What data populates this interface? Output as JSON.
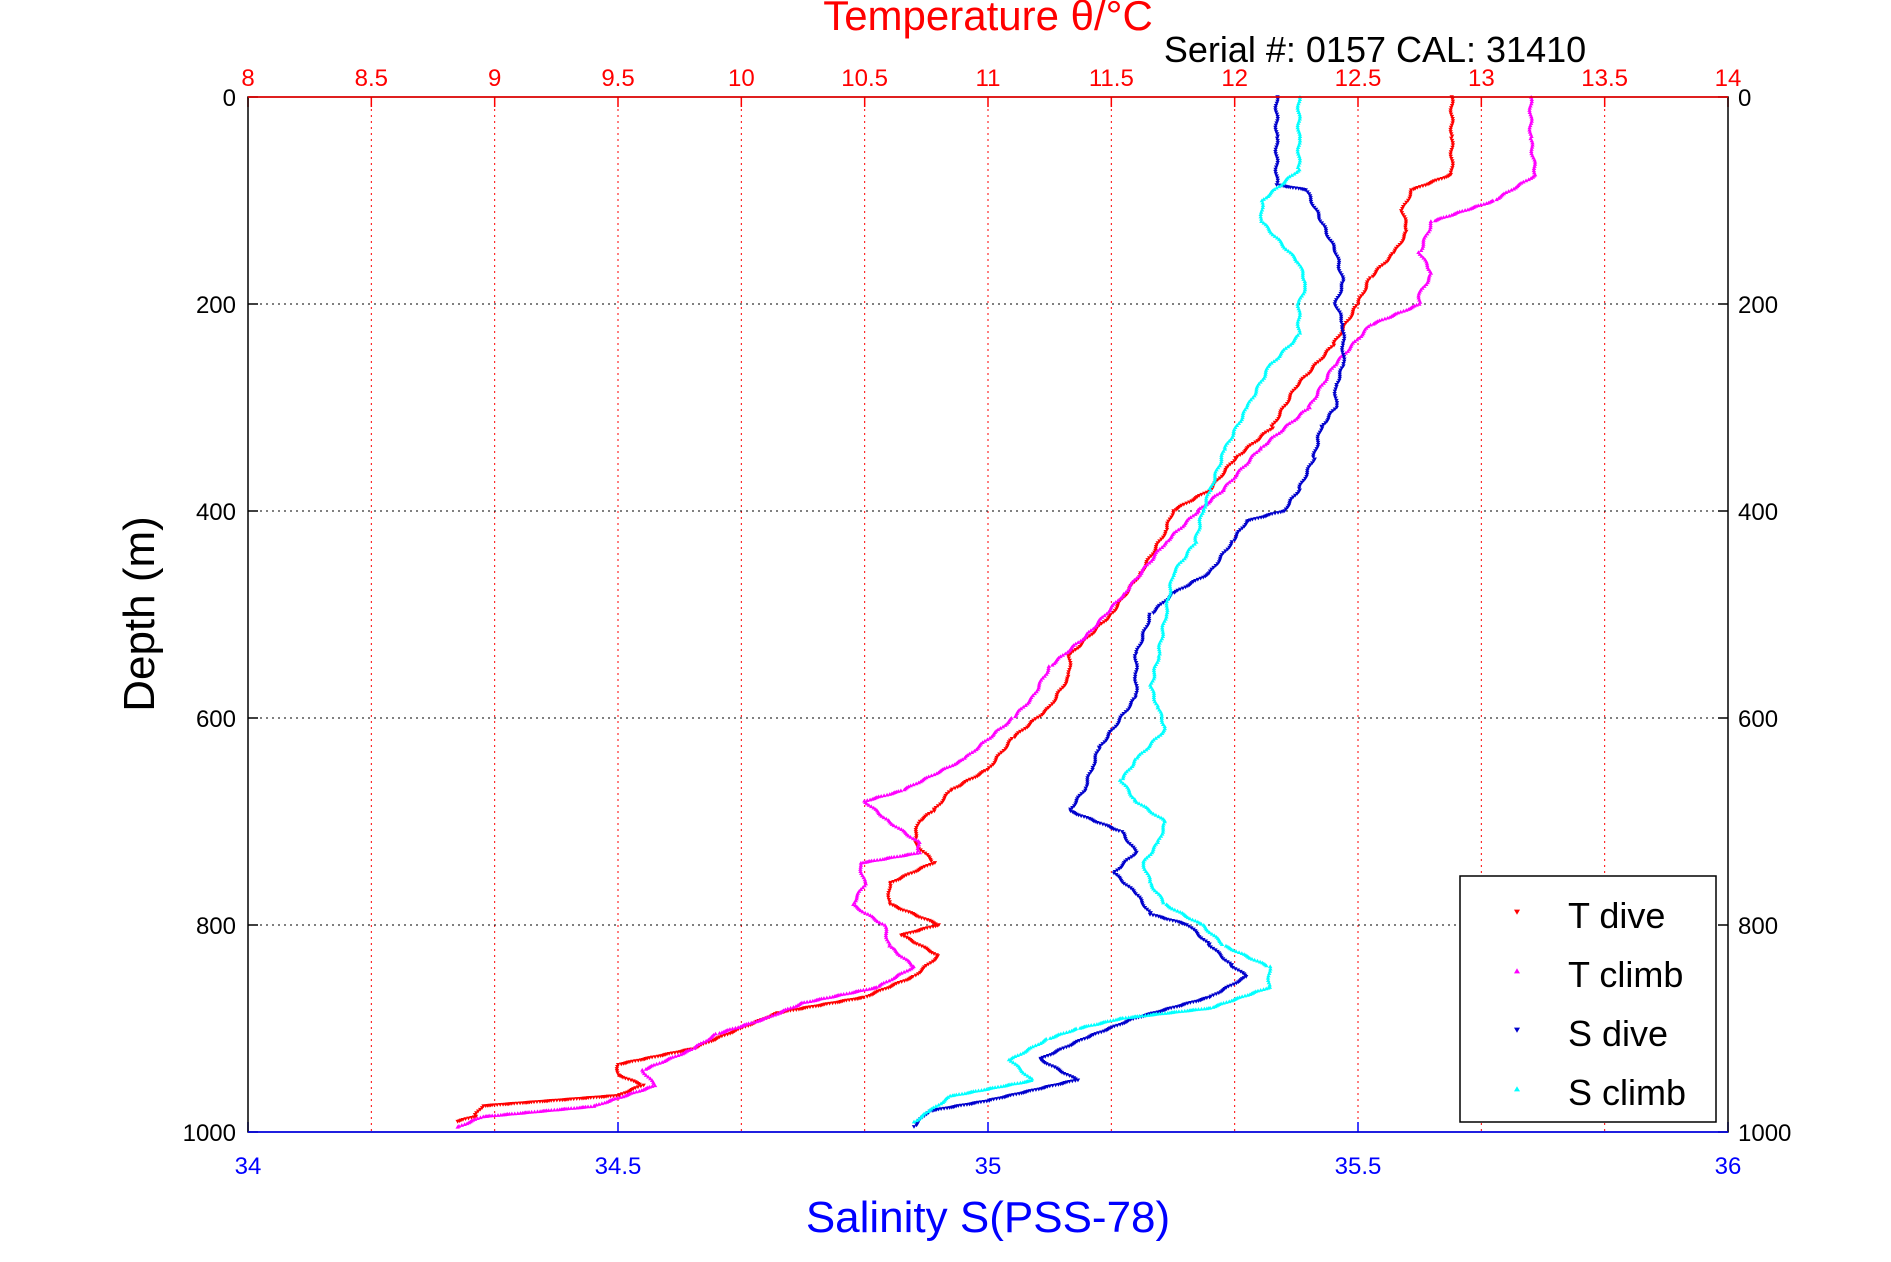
{
  "chart_data": {
    "type": "scatter",
    "title": "Temperature θ/°C",
    "subtitle": "Serial #: 0157  CAL: 31410",
    "xlabel": "Salinity S(PSS-78)",
    "ylabel": "Depth (m)",
    "grid": true,
    "legend_position": "bottom-right",
    "colors": {
      "temperature_axis": "#ff0000",
      "salinity_axis": "#0000ff",
      "t_dive": "#ff0000",
      "t_climb": "#ff00ff",
      "s_dive": "#0000cc",
      "s_climb": "#00ffff",
      "frame": "#000000"
    },
    "axes": {
      "temperature": {
        "lim": [
          8,
          14
        ],
        "ticks": [
          8,
          8.5,
          9,
          9.5,
          10,
          10.5,
          11,
          11.5,
          12,
          12.5,
          13,
          13.5,
          14
        ],
        "tick_labels": [
          "8",
          "8.5",
          "9",
          "9.5",
          "10",
          "10.5",
          "11",
          "11.5",
          "12",
          "12.5",
          "13",
          "13.5",
          "14"
        ]
      },
      "salinity": {
        "lim": [
          34,
          36
        ],
        "ticks": [
          34,
          34.5,
          35,
          35.5,
          36
        ],
        "tick_labels": [
          "34",
          "34.5",
          "35",
          "35.5",
          "36"
        ]
      },
      "depth": {
        "lim": [
          0,
          1000
        ],
        "reversed": true,
        "ticks": [
          0,
          200,
          400,
          600,
          800,
          1000
        ],
        "tick_labels": [
          "0",
          "200",
          "400",
          "600",
          "800",
          "1000"
        ]
      }
    },
    "series": [
      {
        "name": "T dive",
        "axis": "temperature",
        "marker": "▼",
        "points": [
          [
            12.88,
            0
          ],
          [
            12.88,
            40
          ],
          [
            12.88,
            75
          ],
          [
            12.72,
            90
          ],
          [
            12.68,
            110
          ],
          [
            12.7,
            130
          ],
          [
            12.65,
            150
          ],
          [
            12.55,
            175
          ],
          [
            12.5,
            200
          ],
          [
            12.4,
            240
          ],
          [
            12.25,
            280
          ],
          [
            12.15,
            320
          ],
          [
            12.0,
            350
          ],
          [
            11.9,
            380
          ],
          [
            11.75,
            400
          ],
          [
            11.72,
            420
          ],
          [
            11.62,
            460
          ],
          [
            11.5,
            500
          ],
          [
            11.33,
            540
          ],
          [
            11.33,
            560
          ],
          [
            11.25,
            590
          ],
          [
            11.1,
            620
          ],
          [
            11.0,
            650
          ],
          [
            10.85,
            670
          ],
          [
            10.78,
            690
          ],
          [
            10.72,
            700
          ],
          [
            10.7,
            720
          ],
          [
            10.78,
            740
          ],
          [
            10.6,
            760
          ],
          [
            10.6,
            780
          ],
          [
            10.8,
            800
          ],
          [
            10.65,
            810
          ],
          [
            10.8,
            830
          ],
          [
            10.7,
            850
          ],
          [
            10.5,
            870
          ],
          [
            10.15,
            885
          ],
          [
            10.0,
            900
          ],
          [
            9.8,
            920
          ],
          [
            9.5,
            935
          ],
          [
            9.5,
            945
          ],
          [
            9.6,
            955
          ],
          [
            9.5,
            965
          ],
          [
            8.95,
            975
          ],
          [
            8.92,
            985
          ],
          [
            8.85,
            990
          ]
        ]
      },
      {
        "name": "T climb",
        "axis": "temperature",
        "marker": "▲",
        "points": [
          [
            13.2,
            0
          ],
          [
            13.2,
            40
          ],
          [
            13.22,
            75
          ],
          [
            13.05,
            100
          ],
          [
            12.8,
            120
          ],
          [
            12.75,
            150
          ],
          [
            12.8,
            170
          ],
          [
            12.75,
            190
          ],
          [
            12.75,
            200
          ],
          [
            12.55,
            220
          ],
          [
            12.4,
            260
          ],
          [
            12.3,
            300
          ],
          [
            12.1,
            340
          ],
          [
            11.95,
            380
          ],
          [
            11.85,
            400
          ],
          [
            11.72,
            430
          ],
          [
            11.55,
            480
          ],
          [
            11.4,
            520
          ],
          [
            11.25,
            550
          ],
          [
            11.18,
            580
          ],
          [
            11.1,
            600
          ],
          [
            10.9,
            640
          ],
          [
            10.65,
            670
          ],
          [
            10.5,
            680
          ],
          [
            10.6,
            700
          ],
          [
            10.72,
            720
          ],
          [
            10.72,
            730
          ],
          [
            10.48,
            740
          ],
          [
            10.5,
            760
          ],
          [
            10.45,
            780
          ],
          [
            10.58,
            800
          ],
          [
            10.6,
            820
          ],
          [
            10.7,
            840
          ],
          [
            10.55,
            860
          ],
          [
            10.25,
            875
          ],
          [
            10.1,
            890
          ],
          [
            9.9,
            905
          ],
          [
            9.8,
            920
          ],
          [
            9.6,
            940
          ],
          [
            9.65,
            955
          ],
          [
            9.4,
            975
          ],
          [
            8.95,
            985
          ],
          [
            8.85,
            995
          ]
        ]
      },
      {
        "name": "S dive",
        "axis": "salinity",
        "marker": "▼",
        "points": [
          [
            35.39,
            0
          ],
          [
            35.39,
            40
          ],
          [
            35.39,
            85
          ],
          [
            35.43,
            90
          ],
          [
            35.45,
            120
          ],
          [
            35.47,
            150
          ],
          [
            35.48,
            180
          ],
          [
            35.47,
            200
          ],
          [
            35.48,
            220
          ],
          [
            35.48,
            240
          ],
          [
            35.48,
            260
          ],
          [
            35.47,
            280
          ],
          [
            35.47,
            300
          ],
          [
            35.45,
            320
          ],
          [
            35.44,
            350
          ],
          [
            35.42,
            380
          ],
          [
            35.4,
            400
          ],
          [
            35.35,
            410
          ],
          [
            35.33,
            430
          ],
          [
            35.3,
            460
          ],
          [
            35.25,
            480
          ],
          [
            35.22,
            500
          ],
          [
            35.2,
            540
          ],
          [
            35.2,
            560
          ],
          [
            35.2,
            580
          ],
          [
            35.17,
            610
          ],
          [
            35.15,
            630
          ],
          [
            35.14,
            650
          ],
          [
            35.13,
            670
          ],
          [
            35.11,
            690
          ],
          [
            35.18,
            710
          ],
          [
            35.2,
            730
          ],
          [
            35.17,
            750
          ],
          [
            35.2,
            770
          ],
          [
            35.22,
            790
          ],
          [
            35.27,
            800
          ],
          [
            35.3,
            820
          ],
          [
            35.33,
            840
          ],
          [
            35.35,
            850
          ],
          [
            35.3,
            870
          ],
          [
            35.2,
            890
          ],
          [
            35.13,
            910
          ],
          [
            35.07,
            930
          ],
          [
            35.12,
            950
          ],
          [
            35.0,
            970
          ],
          [
            34.92,
            980
          ],
          [
            34.9,
            995
          ]
        ]
      },
      {
        "name": "S climb",
        "axis": "salinity",
        "marker": "▲",
        "points": [
          [
            35.42,
            0
          ],
          [
            35.42,
            40
          ],
          [
            35.42,
            70
          ],
          [
            35.37,
            100
          ],
          [
            35.37,
            120
          ],
          [
            35.42,
            160
          ],
          [
            35.43,
            180
          ],
          [
            35.42,
            200
          ],
          [
            35.42,
            230
          ],
          [
            35.38,
            260
          ],
          [
            35.35,
            300
          ],
          [
            35.32,
            340
          ],
          [
            35.3,
            380
          ],
          [
            35.29,
            400
          ],
          [
            35.28,
            430
          ],
          [
            35.25,
            460
          ],
          [
            35.24,
            500
          ],
          [
            35.23,
            540
          ],
          [
            35.22,
            570
          ],
          [
            35.23,
            590
          ],
          [
            35.24,
            610
          ],
          [
            35.2,
            640
          ],
          [
            35.18,
            660
          ],
          [
            35.2,
            680
          ],
          [
            35.24,
            700
          ],
          [
            35.23,
            720
          ],
          [
            35.21,
            740
          ],
          [
            35.22,
            760
          ],
          [
            35.24,
            780
          ],
          [
            35.29,
            800
          ],
          [
            35.32,
            820
          ],
          [
            35.38,
            840
          ],
          [
            35.38,
            860
          ],
          [
            35.3,
            880
          ],
          [
            35.18,
            890
          ],
          [
            35.12,
            900
          ],
          [
            35.08,
            910
          ],
          [
            35.03,
            930
          ],
          [
            35.06,
            950
          ],
          [
            34.95,
            965
          ],
          [
            34.92,
            980
          ],
          [
            34.9,
            990
          ]
        ]
      }
    ]
  }
}
